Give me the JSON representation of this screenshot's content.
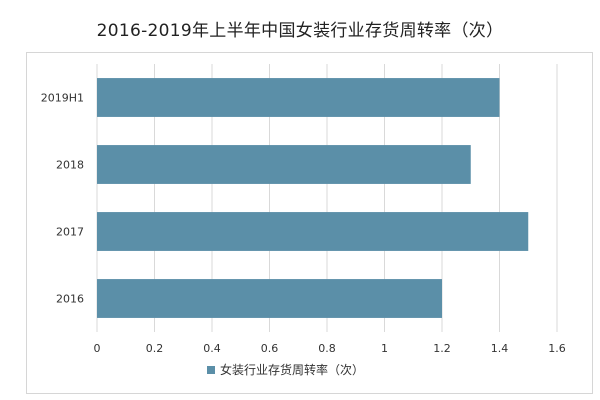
{
  "chart_data": {
    "type": "bar",
    "orientation": "horizontal",
    "title": "2016-2019年上半年中国女装行业存货周转率（次）",
    "categories": [
      "2019H1",
      "2018",
      "2017",
      "2016"
    ],
    "series": [
      {
        "name": "女装行业存货周转率（次）",
        "values": [
          1.4,
          1.3,
          1.5,
          1.2
        ],
        "color": "#5b8fa8"
      }
    ],
    "xlim": [
      0,
      1.6
    ],
    "xticks": [
      "0",
      "0.2",
      "0.4",
      "0.6",
      "0.8",
      "1",
      "1.2",
      "1.4",
      "1.6"
    ],
    "grid": "vertical",
    "legend": "bottom",
    "xlabel": "",
    "ylabel": ""
  }
}
